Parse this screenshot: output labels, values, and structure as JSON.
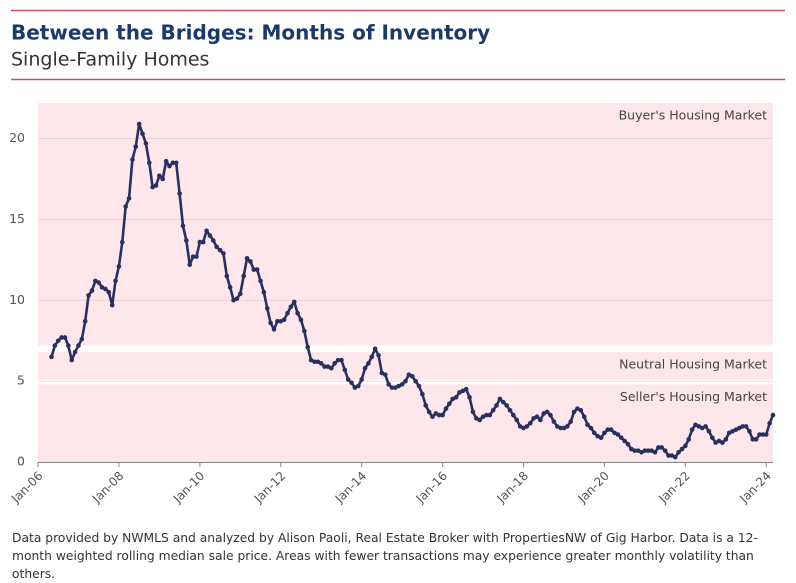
{
  "chart_data": {
    "type": "line",
    "title": "Between the Bridges: Months of Inventory",
    "subtitle": "Single-Family Homes",
    "note": "Data provided by NWMLS and analyzed by Alison Paoli, Real Estate Broker with PropertiesNW of Gig Harbor. Data is a 12-month weighted rolling median sale price. Areas with fewer transactions may experience greater monthly volatility than others.",
    "color": "#27305e",
    "grid": true,
    "bands": [
      {
        "name": "Buyer's Housing Market",
        "range": [
          7.2,
          22.2
        ],
        "color": "#fde7eb"
      },
      {
        "name": "Neutral Housing Market",
        "range": [
          5.1,
          6.8
        ],
        "color": "#fde7eb"
      },
      {
        "name": "Seller's Housing Market",
        "range": [
          0,
          4.8
        ],
        "color": "#fde7eb"
      }
    ],
    "xlim": [
      "2006-01",
      "2024-03"
    ],
    "xticks": [
      {
        "value": "2006-01",
        "label": "Jan-06"
      },
      {
        "value": "2008-01",
        "label": "Jan-08"
      },
      {
        "value": "2010-01",
        "label": "Jan-10"
      },
      {
        "value": "2012-01",
        "label": "Jan-12"
      },
      {
        "value": "2014-01",
        "label": "Jan-14"
      },
      {
        "value": "2016-01",
        "label": "Jan-16"
      },
      {
        "value": "2018-01",
        "label": "Jan-18"
      },
      {
        "value": "2020-01",
        "label": "Jan-20"
      },
      {
        "value": "2022-01",
        "label": "Jan-22"
      },
      {
        "value": "2024-01",
        "label": "Jan-24"
      }
    ],
    "ylim": [
      0,
      22.2
    ],
    "yticks": [
      0,
      5,
      10,
      15,
      20
    ],
    "x": [
      "2006-05",
      "2006-06",
      "2006-07",
      "2006-08",
      "2006-09",
      "2006-10",
      "2006-11",
      "2006-12",
      "2007-01",
      "2007-02",
      "2007-03",
      "2007-04",
      "2007-05",
      "2007-06",
      "2007-07",
      "2007-08",
      "2007-09",
      "2007-10",
      "2007-11",
      "2007-12",
      "2008-01",
      "2008-02",
      "2008-03",
      "2008-04",
      "2008-05",
      "2008-06",
      "2008-07",
      "2008-08",
      "2008-09",
      "2008-10",
      "2008-11",
      "2008-12",
      "2009-01",
      "2009-02",
      "2009-03",
      "2009-04",
      "2009-05",
      "2009-06",
      "2009-07",
      "2009-08",
      "2009-09",
      "2009-10",
      "2009-11",
      "2009-12",
      "2010-01",
      "2010-02",
      "2010-03",
      "2010-04",
      "2010-05",
      "2010-06",
      "2010-07",
      "2010-08",
      "2010-09",
      "2010-10",
      "2010-11",
      "2010-12",
      "2011-01",
      "2011-02",
      "2011-03",
      "2011-04",
      "2011-05",
      "2011-06",
      "2011-07",
      "2011-08",
      "2011-09",
      "2011-10",
      "2011-11",
      "2011-12",
      "2012-01",
      "2012-02",
      "2012-03",
      "2012-04",
      "2012-05",
      "2012-06",
      "2012-07",
      "2012-08",
      "2012-09",
      "2012-10",
      "2012-11",
      "2012-12",
      "2013-01",
      "2013-02",
      "2013-03",
      "2013-04",
      "2013-05",
      "2013-06",
      "2013-07",
      "2013-08",
      "2013-09",
      "2013-10",
      "2013-11",
      "2013-12",
      "2014-01",
      "2014-02",
      "2014-03",
      "2014-04",
      "2014-05",
      "2014-06",
      "2014-07",
      "2014-08",
      "2014-09",
      "2014-10",
      "2014-11",
      "2014-12",
      "2015-01",
      "2015-02",
      "2015-03",
      "2015-04",
      "2015-05",
      "2015-06",
      "2015-07",
      "2015-08",
      "2015-09",
      "2015-10",
      "2015-11",
      "2015-12",
      "2016-01",
      "2016-02",
      "2016-03",
      "2016-04",
      "2016-05",
      "2016-06",
      "2016-07",
      "2016-08",
      "2016-09",
      "2016-10",
      "2016-11",
      "2016-12",
      "2017-01",
      "2017-02",
      "2017-03",
      "2017-04",
      "2017-05",
      "2017-06",
      "2017-07",
      "2017-08",
      "2017-09",
      "2017-10",
      "2017-11",
      "2017-12",
      "2018-01",
      "2018-02",
      "2018-03",
      "2018-04",
      "2018-05",
      "2018-06",
      "2018-07",
      "2018-08",
      "2018-09",
      "2018-10",
      "2018-11",
      "2018-12",
      "2019-01",
      "2019-02",
      "2019-03",
      "2019-04",
      "2019-05",
      "2019-06",
      "2019-07",
      "2019-08",
      "2019-09",
      "2019-10",
      "2019-11",
      "2019-12",
      "2020-01",
      "2020-02",
      "2020-03",
      "2020-04",
      "2020-05",
      "2020-06",
      "2020-07",
      "2020-08",
      "2020-09",
      "2020-10",
      "2020-11",
      "2020-12",
      "2021-01",
      "2021-02",
      "2021-03",
      "2021-04",
      "2021-05",
      "2021-06",
      "2021-07",
      "2021-08",
      "2021-09",
      "2021-10",
      "2021-11",
      "2021-12",
      "2022-01",
      "2022-02",
      "2022-03",
      "2022-04",
      "2022-05",
      "2022-06",
      "2022-07",
      "2022-08",
      "2022-09",
      "2022-10",
      "2022-11",
      "2022-12",
      "2023-01",
      "2023-02",
      "2023-03",
      "2023-04",
      "2023-05",
      "2023-06",
      "2023-07",
      "2023-08",
      "2023-09",
      "2023-10",
      "2023-11",
      "2023-12",
      "2024-01",
      "2024-02",
      "2024-03"
    ],
    "values": [
      6.5,
      7.2,
      7.5,
      7.7,
      7.7,
      7.2,
      6.3,
      6.8,
      7.2,
      7.6,
      8.7,
      10.3,
      10.6,
      11.2,
      11.1,
      10.8,
      10.7,
      10.5,
      9.7,
      11.2,
      12.1,
      13.6,
      15.8,
      16.3,
      18.7,
      19.5,
      20.9,
      20.3,
      19.7,
      18.5,
      17.0,
      17.1,
      17.7,
      17.5,
      18.6,
      18.3,
      18.5,
      18.5,
      16.6,
      14.6,
      13.7,
      12.2,
      12.7,
      12.7,
      13.6,
      13.6,
      14.3,
      14.0,
      13.7,
      13.3,
      13.1,
      12.9,
      11.5,
      10.8,
      10.0,
      10.1,
      10.4,
      11.5,
      12.6,
      12.4,
      11.9,
      11.9,
      11.2,
      10.5,
      9.5,
      8.6,
      8.2,
      8.7,
      8.7,
      8.8,
      9.2,
      9.6,
      9.9,
      9.2,
      8.8,
      8.1,
      7.1,
      6.3,
      6.2,
      6.2,
      6.1,
      5.9,
      5.9,
      5.8,
      6.1,
      6.3,
      6.3,
      5.7,
      5.1,
      4.9,
      4.6,
      4.7,
      5.1,
      5.8,
      6.1,
      6.5,
      7.0,
      6.6,
      5.5,
      5.4,
      4.8,
      4.6,
      4.6,
      4.7,
      4.8,
      5.0,
      5.4,
      5.3,
      5.0,
      4.7,
      4.2,
      3.5,
      3.1,
      2.8,
      3.0,
      2.9,
      2.9,
      3.3,
      3.6,
      3.9,
      4.0,
      4.3,
      4.4,
      4.5,
      4.0,
      3.1,
      2.7,
      2.6,
      2.8,
      2.9,
      2.9,
      3.2,
      3.5,
      3.9,
      3.7,
      3.5,
      3.2,
      2.9,
      2.6,
      2.2,
      2.1,
      2.2,
      2.4,
      2.7,
      2.8,
      2.6,
      3.0,
      3.1,
      2.9,
      2.5,
      2.2,
      2.1,
      2.1,
      2.2,
      2.5,
      3.1,
      3.3,
      3.2,
      2.8,
      2.3,
      2.1,
      1.8,
      1.6,
      1.5,
      1.8,
      2.0,
      2.0,
      1.8,
      1.7,
      1.5,
      1.3,
      1.1,
      0.8,
      0.7,
      0.7,
      0.6,
      0.7,
      0.7,
      0.7,
      0.6,
      0.9,
      0.9,
      0.7,
      0.4,
      0.4,
      0.3,
      0.6,
      0.8,
      1.0,
      1.4,
      2.0,
      2.3,
      2.2,
      2.1,
      2.2,
      1.9,
      1.5,
      1.2,
      1.3,
      1.2,
      1.4,
      1.8,
      1.9,
      2.0,
      2.1,
      2.2,
      2.2,
      1.9,
      1.4,
      1.4,
      1.7,
      1.7,
      1.7,
      2.4,
      2.9
    ]
  }
}
